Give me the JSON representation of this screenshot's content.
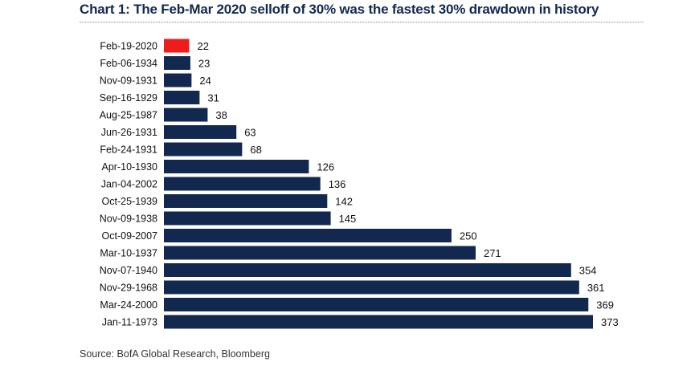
{
  "chart_data": {
    "type": "bar",
    "orientation": "horizontal",
    "title": "Chart 1: The Feb-Mar 2020 selloff of 30% was the fastest 30% drawdown in history",
    "categories": [
      "Feb-19-2020",
      "Feb-06-1934",
      "Nov-09-1931",
      "Sep-16-1929",
      "Aug-25-1987",
      "Jun-26-1931",
      "Feb-24-1931",
      "Apr-10-1930",
      "Jan-04-2002",
      "Oct-25-1939",
      "Nov-09-1938",
      "Oct-09-2007",
      "Mar-10-1937",
      "Nov-07-1940",
      "Nov-29-1968",
      "Mar-24-2000",
      "Jan-11-1973"
    ],
    "values": [
      22,
      23,
      24,
      31,
      38,
      63,
      68,
      126,
      136,
      142,
      145,
      250,
      271,
      354,
      361,
      369,
      373
    ],
    "value_labels": [
      "22",
      "23",
      "24",
      "31",
      "38",
      "63",
      "68",
      "126",
      "136",
      "142",
      "145",
      "250",
      "271",
      "354",
      "361",
      "369",
      "373"
    ],
    "highlight_index": 0,
    "colors": {
      "bar": "#12284f",
      "highlight": "#ee1c1c",
      "title": "#12294f"
    },
    "xlim": [
      0,
      373
    ],
    "grid": false,
    "legend": "none"
  },
  "source": "Source: BofA Global Research, Bloomberg"
}
